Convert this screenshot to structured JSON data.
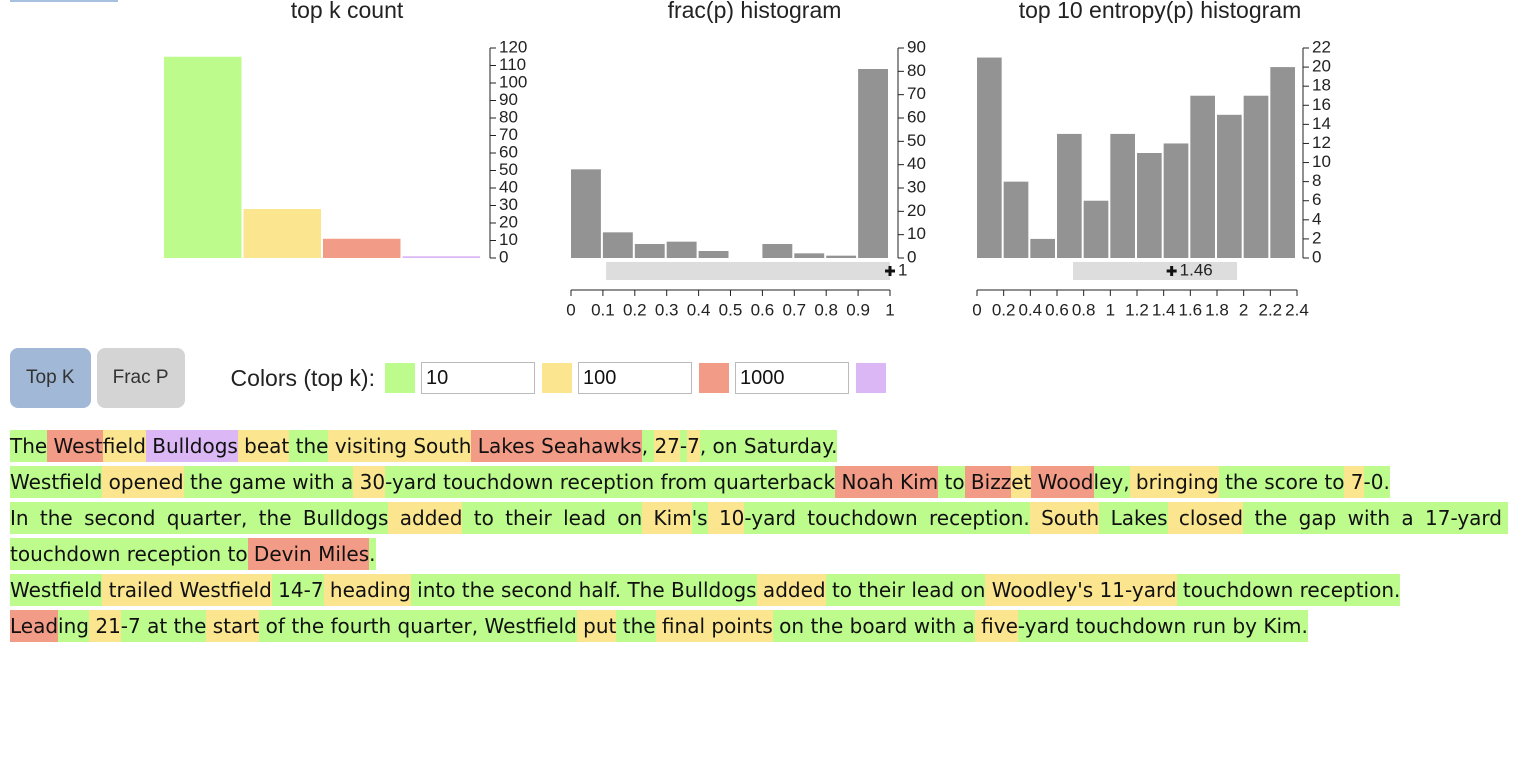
{
  "chart_data": [
    {
      "type": "bar",
      "title": "top k count",
      "categories": [
        null,
        null,
        null,
        null
      ],
      "values": [
        115,
        28,
        11,
        1
      ],
      "colors": [
        "#bdfb8d",
        "#fbe58e",
        "#f29b86",
        "#dbb8f5"
      ],
      "ylim": [
        0,
        120
      ],
      "yticks": [
        0,
        10,
        20,
        30,
        40,
        50,
        60,
        70,
        80,
        90,
        100,
        110,
        120
      ],
      "y_axis_side": "right"
    },
    {
      "type": "histogram",
      "title": "frac(p) histogram",
      "bins": [
        0,
        0.1,
        0.2,
        0.3,
        0.4,
        0.5,
        0.6,
        0.7,
        0.8,
        0.9,
        1
      ],
      "values": [
        38,
        11,
        6,
        7,
        3,
        0,
        6,
        2,
        1,
        81
      ],
      "color": "#939393",
      "xlim": [
        0,
        1
      ],
      "xticks": [
        0,
        0.1,
        0.2,
        0.3,
        0.4,
        0.5,
        0.6,
        0.7,
        0.8,
        0.9,
        1
      ],
      "ylim": [
        0,
        90
      ],
      "yticks": [
        0,
        10,
        20,
        30,
        40,
        50,
        60,
        70,
        80,
        90
      ],
      "y_axis_side": "right",
      "brush": {
        "range": [
          0.11,
          1
        ],
        "value": 1
      }
    },
    {
      "type": "histogram",
      "title": "top 10 entropy(p) histogram",
      "bins": [
        0,
        0.2,
        0.4,
        0.6,
        0.8,
        1,
        1.2,
        1.4,
        1.6,
        1.8,
        2,
        2.2,
        2.4
      ],
      "values": [
        21,
        8,
        2,
        13,
        6,
        13,
        11,
        12,
        17,
        15,
        17,
        20
      ],
      "color": "#939393",
      "xlim": [
        0,
        2.4
      ],
      "xticks": [
        0,
        0.2,
        0.4,
        0.6,
        0.8,
        1,
        1.2,
        1.4,
        1.6,
        1.8,
        2,
        2.2,
        2.4
      ],
      "ylim": [
        0,
        22
      ],
      "yticks": [
        0,
        2,
        4,
        6,
        8,
        10,
        12,
        14,
        16,
        18,
        20,
        22
      ],
      "y_axis_side": "right",
      "brush": {
        "range": [
          0.72,
          1.95
        ],
        "value": 1.46
      }
    }
  ],
  "controls": {
    "buttons": [
      {
        "label": "Top K",
        "active": true
      },
      {
        "label": "Frac P",
        "active": false
      }
    ],
    "colors_label": "Colors (top k):",
    "thresholds": [
      {
        "color": "#bdfb8d",
        "value": "10"
      },
      {
        "color": "#fbe58e",
        "value": "100"
      },
      {
        "color": "#f29b86",
        "value": "1000"
      },
      {
        "color": "#dbb8f5"
      }
    ]
  },
  "text": {
    "lines": [
      [
        {
          "text": "The",
          "bucket": 0
        },
        {
          "text": " West",
          "bucket": 2
        },
        {
          "text": "field",
          "bucket": 1
        },
        {
          "text": " Bulldogs",
          "bucket": 3
        },
        {
          "text": " beat",
          "bucket": 1
        },
        {
          "text": " the",
          "bucket": 0
        },
        {
          "text": " visiting South",
          "bucket": 1
        },
        {
          "text": " Lakes Seahawks",
          "bucket": 2
        },
        {
          "text": ", ",
          "bucket": 0
        },
        {
          "text": "27",
          "bucket": 1
        },
        {
          "text": "-",
          "bucket": 0
        },
        {
          "text": "7",
          "bucket": 1
        },
        {
          "text": ", on Saturday.",
          "bucket": 0
        }
      ],
      [
        {
          "text": "Westfield",
          "bucket": 0
        },
        {
          "text": " opened",
          "bucket": 1
        },
        {
          "text": " the game with a",
          "bucket": 0
        },
        {
          "text": " 30",
          "bucket": 1
        },
        {
          "text": "-yard touchdown reception from quarterback",
          "bucket": 0
        },
        {
          "text": " Noah Kim",
          "bucket": 2
        },
        {
          "text": " to",
          "bucket": 0
        },
        {
          "text": " Bizz",
          "bucket": 2
        },
        {
          "text": "et",
          "bucket": 1
        },
        {
          "text": " Wood",
          "bucket": 2
        },
        {
          "text": "ley,",
          "bucket": 0
        },
        {
          "text": " bringing",
          "bucket": 1
        },
        {
          "text": " the score to",
          "bucket": 0
        },
        {
          "text": " 7",
          "bucket": 1
        },
        {
          "text": "-0.",
          "bucket": 0
        }
      ],
      [
        {
          "text": "In the second quarter, the Bulldogs",
          "bucket": 0
        },
        {
          "text": " added",
          "bucket": 1
        },
        {
          "text": " to their lead on",
          "bucket": 0
        },
        {
          "text": " Kim",
          "bucket": 1
        },
        {
          "text": "'s",
          "bucket": 0
        },
        {
          "text": " 10",
          "bucket": 1
        },
        {
          "text": "-yard touchdown reception.",
          "bucket": 0
        },
        {
          "text": " South",
          "bucket": 1
        },
        {
          "text": " Lakes",
          "bucket": 0
        },
        {
          "text": " closed",
          "bucket": 1
        },
        {
          "text": " the gap with a 17-yard touchdown reception to",
          "bucket": 0
        },
        {
          "text": " Devin Miles",
          "bucket": 2
        },
        {
          "text": ".",
          "bucket": 0
        }
      ],
      [
        {
          "text": "Westfield",
          "bucket": 0
        },
        {
          "text": " trailed Westfield",
          "bucket": 1
        },
        {
          "text": " 14-7",
          "bucket": 0
        },
        {
          "text": " heading",
          "bucket": 1
        },
        {
          "text": " into the second half. The Bulldogs",
          "bucket": 0
        },
        {
          "text": " added",
          "bucket": 1
        },
        {
          "text": " to their lead on",
          "bucket": 0
        },
        {
          "text": " Woodley's 11-yard",
          "bucket": 1
        },
        {
          "text": " touchdown reception.",
          "bucket": 0
        }
      ],
      [
        {
          "text": "Lead",
          "bucket": 2
        },
        {
          "text": "ing",
          "bucket": 0
        },
        {
          "text": " 21",
          "bucket": 1
        },
        {
          "text": "-7 at the",
          "bucket": 0
        },
        {
          "text": " start",
          "bucket": 1
        },
        {
          "text": " of the fourth quarter, Westfield",
          "bucket": 0
        },
        {
          "text": " put",
          "bucket": 1
        },
        {
          "text": " the",
          "bucket": 0
        },
        {
          "text": " final points",
          "bucket": 1
        },
        {
          "text": " on the board with a",
          "bucket": 0
        },
        {
          "text": " five",
          "bucket": 1
        },
        {
          "text": "-yard touchdown run by Kim.",
          "bucket": 0
        }
      ]
    ]
  }
}
